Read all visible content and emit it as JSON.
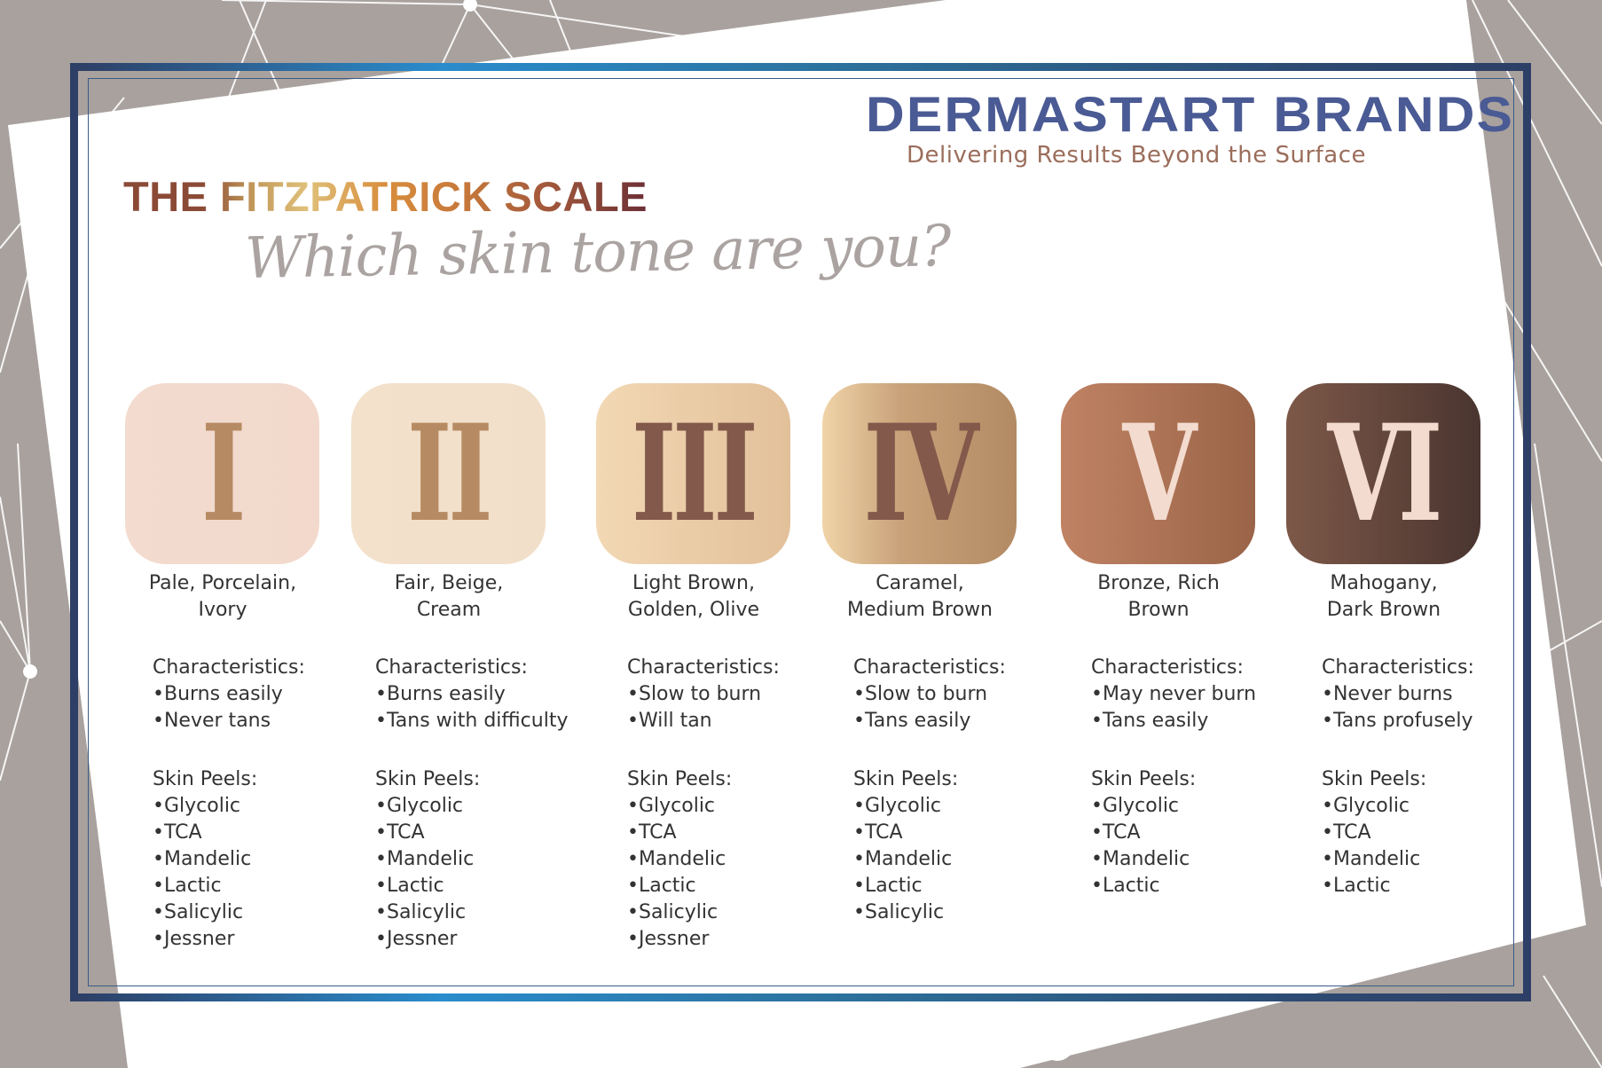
{
  "brand": {
    "name": "DERMASTART BRANDS",
    "tagline": "Delivering Results Beyond the Surface"
  },
  "title": "THE FITZPATRICK SCALE",
  "subtitle": "Which skin tone are you?",
  "colors": {
    "brand": "#4a5a94",
    "tagline": "#9b6d5b",
    "frame": "#2f4468",
    "background": "#a8a19e"
  },
  "types": [
    {
      "numeral": "I",
      "label_1": "Pale, Porcelain,",
      "label_2": "Ivory",
      "characteristics_heading": "Characteristics:",
      "characteristics": [
        "•Burns easily",
        "•Never tans"
      ],
      "peels_heading": "Skin Peels:",
      "peels": [
        "•Glycolic",
        "•TCA",
        "•Mandelic",
        "•Lactic",
        "•Salicylic",
        "•Jessner"
      ],
      "tile_color": "#f3dbcf",
      "numeral_color": "#b68b63"
    },
    {
      "numeral": "II",
      "label_1": "Fair, Beige,",
      "label_2": "Cream",
      "characteristics_heading": "Characteristics:",
      "characteristics": [
        "•Burns easily",
        "•Tans with difficulty"
      ],
      "peels_heading": "Skin Peels:",
      "peels": [
        "•Glycolic",
        "•TCA",
        "•Mandelic",
        "•Lactic",
        "•Salicylic",
        "•Jessner"
      ],
      "tile_color": "#f3e1cb",
      "numeral_color": "#b68b63"
    },
    {
      "numeral": "III",
      "label_1": "Light Brown,",
      "label_2": "Golden, Olive",
      "characteristics_heading": "Characteristics:",
      "characteristics": [
        "•Slow to burn",
        "•Will tan"
      ],
      "peels_heading": "Skin Peels:",
      "peels": [
        "•Glycolic",
        "•TCA",
        "•Mandelic",
        "•Lactic",
        "•Salicylic",
        "•Jessner"
      ],
      "tile_color": "#ecd2b0",
      "numeral_color": "#82594a"
    },
    {
      "numeral": "IV",
      "label_1": "Caramel,",
      "label_2": "Medium Brown",
      "characteristics_heading": "Characteristics:",
      "characteristics": [
        "•Slow to burn",
        "•Tans easily"
      ],
      "peels_heading": "Skin Peels:",
      "peels": [
        "•Glycolic",
        "•TCA",
        "•Mandelic",
        "•Lactic",
        "•Salicylic"
      ],
      "tile_color": "#c8a47c",
      "numeral_color": "#82594a"
    },
    {
      "numeral": "V",
      "label_1": "Bronze, Rich",
      "label_2": "Brown",
      "characteristics_heading": "Characteristics:",
      "characteristics": [
        "•May never burn",
        "•Tans easily"
      ],
      "peels_heading": "Skin Peels:",
      "peels": [
        "•Glycolic",
        "•TCA",
        "•Mandelic",
        "•Lactic"
      ],
      "tile_color": "#a96f50",
      "numeral_color": "#f3dbcf"
    },
    {
      "numeral": "VI",
      "label_1": "Mahogany,",
      "label_2": "Dark Brown",
      "characteristics_heading": "Characteristics:",
      "characteristics": [
        "•Never burns",
        "•Tans profusely"
      ],
      "peels_heading": "Skin Peels:",
      "peels": [
        "•Glycolic",
        "•TCA",
        "•Mandelic",
        "•Lactic"
      ],
      "tile_color": "#634438",
      "numeral_color": "#f3dbcf"
    }
  ]
}
